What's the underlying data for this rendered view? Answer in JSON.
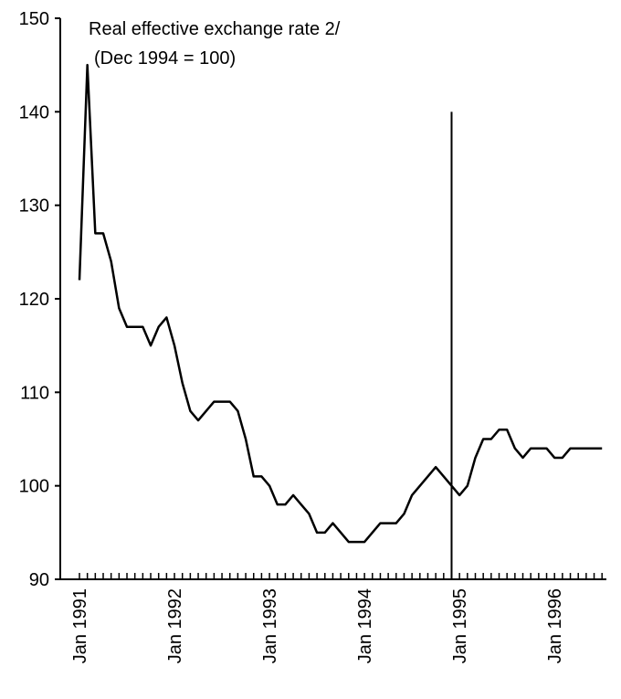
{
  "chart_data": {
    "type": "line",
    "title": "Real effective exchange rate 2/",
    "subtitle": "(Dec 1994 = 100)",
    "categories": [
      "Jan 1991",
      null,
      null,
      null,
      null,
      null,
      null,
      null,
      null,
      null,
      null,
      null,
      "Jan 1992",
      null,
      null,
      null,
      null,
      null,
      null,
      null,
      null,
      null,
      null,
      null,
      "Jan 1993",
      null,
      null,
      null,
      null,
      null,
      null,
      null,
      null,
      null,
      null,
      null,
      "Jan 1994",
      null,
      null,
      null,
      null,
      null,
      null,
      null,
      null,
      null,
      null,
      null,
      "Jan 1995",
      null,
      null,
      null,
      null,
      null,
      null,
      null,
      null,
      null,
      null,
      null,
      "Jan 1996",
      null,
      null,
      null,
      null,
      null,
      null
    ],
    "values": [
      122,
      145,
      127,
      127,
      124,
      119,
      117,
      117,
      117,
      115,
      117,
      118,
      115,
      111,
      108,
      107,
      108,
      109,
      109,
      109,
      108,
      105,
      101,
      101,
      100,
      98,
      98,
      99,
      98,
      97,
      95,
      95,
      96,
      95,
      94,
      94,
      94,
      95,
      96,
      96,
      96,
      97,
      99,
      100,
      101,
      102,
      101,
      100,
      99,
      100,
      103,
      105,
      105,
      106,
      106,
      104,
      103,
      104,
      104,
      104,
      103,
      103,
      104,
      104,
      104,
      104,
      104
    ],
    "color": "#000000",
    "ylim": [
      90,
      150
    ],
    "yticks": [
      90,
      100,
      110,
      120,
      130,
      140,
      150
    ],
    "vertical_line": {
      "at": 47,
      "to": 140
    }
  }
}
